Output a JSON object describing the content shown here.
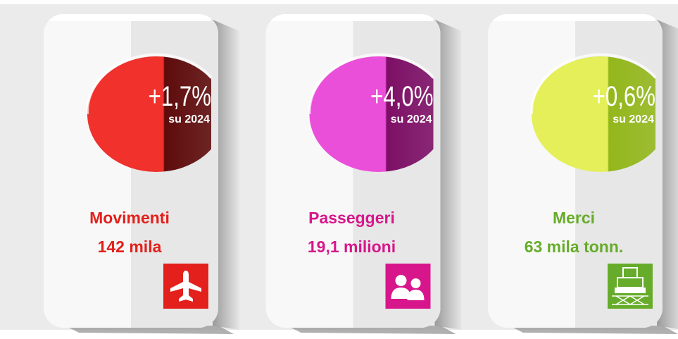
{
  "cards": [
    {
      "change": "+1,7%",
      "compare": "su 2024",
      "label": "Movimenti",
      "value": "142 mila",
      "color": "#e3201b",
      "oval": [
        "#f0312c",
        "#5e0b0b"
      ],
      "icon": "plane"
    },
    {
      "change": "+4,0%",
      "compare": "su 2024",
      "label": "Passeggeri",
      "value": "19,1 milioni",
      "color": "#d8168c",
      "oval": [
        "#ea4fd9",
        "#7d0f66"
      ],
      "icon": "people"
    },
    {
      "change": "+0,6%",
      "compare": "su 2024",
      "label": "Merci",
      "value": "63 mila tonn.",
      "color": "#66ac2a",
      "oval": [
        "#e4ef5a",
        "#93b71b"
      ],
      "icon": "cargo"
    }
  ]
}
